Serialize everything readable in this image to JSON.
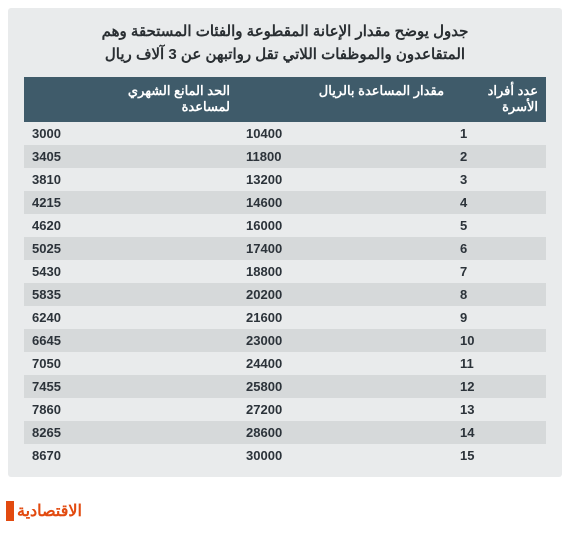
{
  "title_line1": "جدول يوضح مقدار الإعانة المقطوعة والفئات المستحقة وهم",
  "title_line2": "المتقاعدون والموظفات اللاتي تقل رواتبهن عن 3 آلاف ريال",
  "title_fontsize": 15,
  "columns": [
    {
      "key": "members",
      "label_line1": "عدد أفراد",
      "label_line2": "الأسرة",
      "width": "18%"
    },
    {
      "key": "amount",
      "label_line1": "مقدار المساعدة بالريال",
      "label_line2": "",
      "width": "41%"
    },
    {
      "key": "limit",
      "label_line1": "الحد المانع الشهري",
      "label_line2": "لمساعدة",
      "width": "41%"
    }
  ],
  "header_fontsize": 13,
  "cell_fontsize": 13,
  "rows": [
    {
      "members": 1,
      "amount": 10400,
      "limit": 3000
    },
    {
      "members": 2,
      "amount": 11800,
      "limit": 3405
    },
    {
      "members": 3,
      "amount": 13200,
      "limit": 3810
    },
    {
      "members": 4,
      "amount": 14600,
      "limit": 4215
    },
    {
      "members": 5,
      "amount": 16000,
      "limit": 4620
    },
    {
      "members": 6,
      "amount": 17400,
      "limit": 5025
    },
    {
      "members": 7,
      "amount": 18800,
      "limit": 5430
    },
    {
      "members": 8,
      "amount": 20200,
      "limit": 5835
    },
    {
      "members": 9,
      "amount": 21600,
      "limit": 6240
    },
    {
      "members": 10,
      "amount": 23000,
      "limit": 6645
    },
    {
      "members": 11,
      "amount": 24400,
      "limit": 7050
    },
    {
      "members": 12,
      "amount": 25800,
      "limit": 7455
    },
    {
      "members": 13,
      "amount": 27200,
      "limit": 7860
    },
    {
      "members": 14,
      "amount": 28600,
      "limit": 8265
    },
    {
      "members": 15,
      "amount": 30000,
      "limit": 8670
    }
  ],
  "brand_text": "الاقتصادية",
  "brand_fontsize": 16,
  "colors": {
    "card_bg": "#e9ebec",
    "title_color": "#2a2f33",
    "head_bg": "#3f5b6a",
    "head_fg": "#ffffff",
    "row_bg": "#e9ebec",
    "row_alt": "#d6d9da",
    "cell_fg": "#2c333a",
    "brand_color": "#e24a0f",
    "brand_accent": "#e24a0f"
  }
}
